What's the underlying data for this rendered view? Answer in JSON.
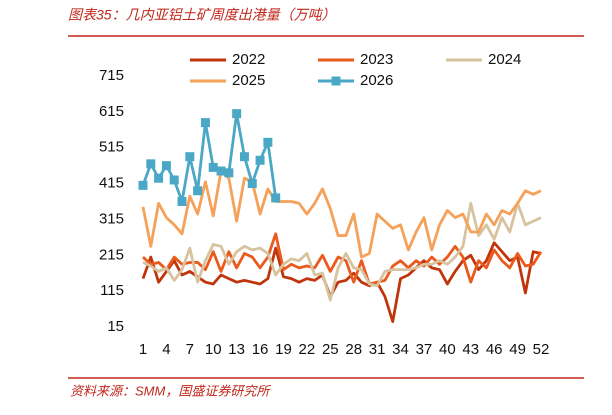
{
  "chart_data": {
    "type": "line",
    "title": "图表35：几内亚铝土矿周度出港量（万吨）",
    "source": "资料来源：SMM，国盛证券研究所",
    "x": [
      1,
      2,
      3,
      4,
      5,
      6,
      7,
      8,
      9,
      10,
      11,
      12,
      13,
      14,
      15,
      16,
      17,
      18,
      19,
      20,
      21,
      22,
      23,
      24,
      25,
      26,
      27,
      28,
      29,
      30,
      31,
      32,
      33,
      34,
      35,
      36,
      37,
      38,
      39,
      40,
      41,
      42,
      43,
      44,
      45,
      46,
      47,
      48,
      49,
      50,
      51,
      52
    ],
    "xlim": [
      1,
      52
    ],
    "xticks": [
      1,
      4,
      7,
      10,
      13,
      16,
      19,
      22,
      25,
      28,
      31,
      34,
      37,
      40,
      43,
      46,
      49,
      52
    ],
    "ylim": [
      15,
      715
    ],
    "yticks": [
      15,
      115,
      215,
      315,
      415,
      515,
      615,
      715
    ],
    "grid": false,
    "legend": "top",
    "series": [
      {
        "name": "2022",
        "color": "#c0360c",
        "values": [
          150,
          210,
          140,
          170,
          200,
          160,
          170,
          155,
          140,
          135,
          160,
          150,
          140,
          145,
          140,
          135,
          150,
          235,
          155,
          150,
          140,
          150,
          145,
          160,
          100,
          140,
          145,
          165,
          140,
          130,
          140,
          100,
          30,
          150,
          160,
          180,
          200,
          180,
          175,
          135,
          170,
          200,
          215,
          175,
          200,
          250,
          225,
          200,
          210,
          110,
          225,
          220
        ]
      },
      {
        "name": "2023",
        "color": "#ea5a1c",
        "values": [
          210,
          190,
          195,
          175,
          210,
          190,
          195,
          195,
          175,
          225,
          170,
          225,
          180,
          220,
          210,
          180,
          210,
          275,
          175,
          190,
          180,
          185,
          180,
          215,
          170,
          210,
          200,
          140,
          200,
          135,
          140,
          145,
          185,
          200,
          180,
          200,
          185,
          210,
          190,
          210,
          240,
          210,
          140,
          200,
          180,
          230,
          200,
          180,
          220,
          185,
          190,
          225
        ]
      },
      {
        "name": "2024",
        "color": "#d8c3a0",
        "values": [
          195,
          185,
          170,
          180,
          145,
          175,
          235,
          140,
          200,
          245,
          240,
          190,
          225,
          240,
          230,
          235,
          220,
          160,
          190,
          205,
          200,
          220,
          160,
          165,
          90,
          180,
          220,
          180,
          175,
          135,
          130,
          170,
          175,
          175,
          175,
          180,
          190,
          190,
          200,
          190,
          210,
          240,
          360,
          270,
          300,
          260,
          320,
          280,
          360,
          300,
          310,
          320
        ]
      },
      {
        "name": "2025",
        "color": "#f5a15a",
        "values": [
          350,
          240,
          360,
          320,
          300,
          275,
          380,
          330,
          420,
          325,
          450,
          430,
          310,
          430,
          420,
          330,
          400,
          365,
          365,
          365,
          360,
          330,
          360,
          400,
          345,
          270,
          270,
          330,
          210,
          220,
          330,
          310,
          290,
          300,
          230,
          280,
          320,
          230,
          300,
          340,
          320,
          330,
          280,
          280,
          330,
          300,
          340,
          330,
          360,
          395,
          385,
          395
        ]
      },
      {
        "name": "2026",
        "color": "#4aa8c6",
        "marker": "square",
        "values": [
          410,
          470,
          430,
          465,
          425,
          365,
          490,
          395,
          585,
          460,
          450,
          445,
          610,
          490,
          415,
          480,
          530,
          375,
          null,
          null,
          null,
          null,
          null,
          null,
          null,
          null,
          null,
          null,
          null,
          null,
          null,
          null,
          null,
          null,
          null,
          null,
          null,
          null,
          null,
          null,
          null,
          null,
          null,
          null,
          null,
          null,
          null,
          null,
          null,
          null,
          null,
          null
        ]
      }
    ]
  }
}
